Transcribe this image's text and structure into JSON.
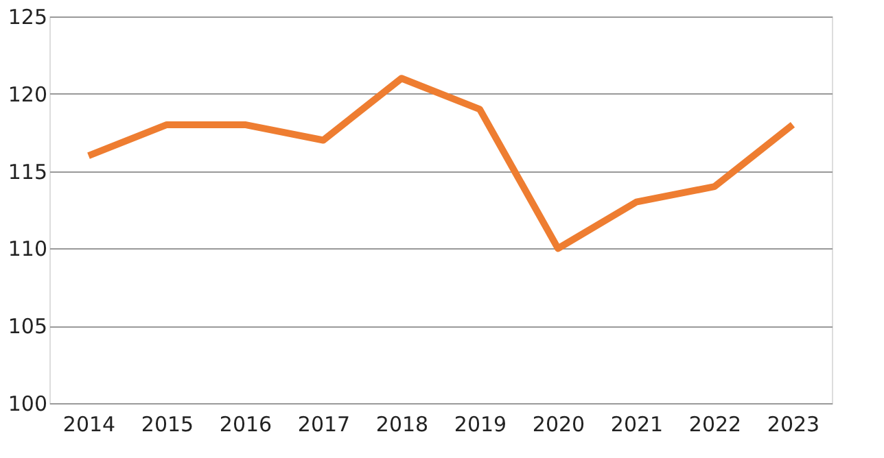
{
  "chart_data": {
    "type": "line",
    "categories": [
      "2014",
      "2015",
      "2016",
      "2017",
      "2018",
      "2019",
      "2020",
      "2021",
      "2022",
      "2023"
    ],
    "series": [
      {
        "color": "#ee7d31",
        "values": [
          116,
          118,
          118,
          117,
          121,
          119,
          110,
          113,
          114,
          118
        ]
      }
    ],
    "ylim": [
      100,
      125
    ],
    "yticks": [
      100,
      105,
      110,
      115,
      120,
      125
    ],
    "grid": "y",
    "marker": "none",
    "line_style": "solid"
  }
}
